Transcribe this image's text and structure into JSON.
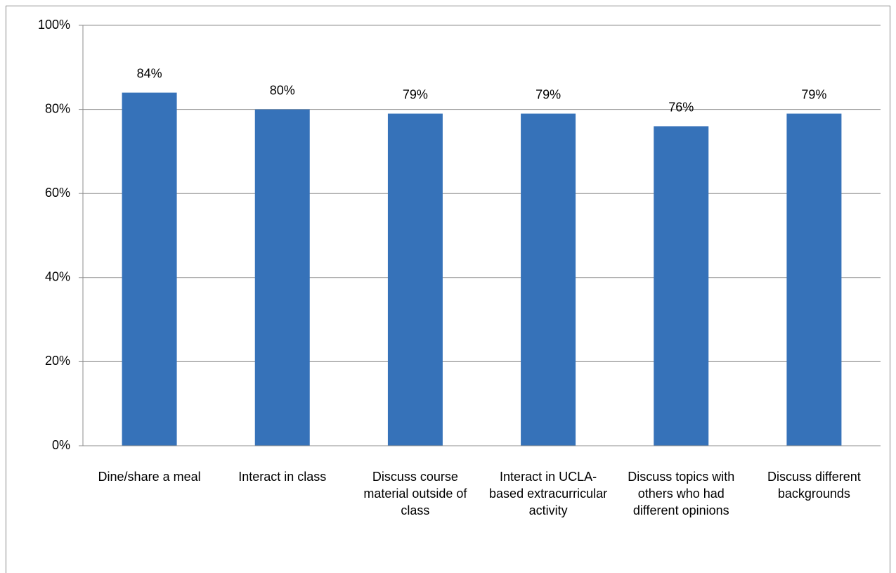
{
  "chart_data": {
    "type": "bar",
    "categories": [
      "Dine/share a meal",
      "Interact in class",
      "Discuss course material outside of class",
      "Interact in UCLA-based extracurricular activity",
      "Discuss topics with others who had different opinions",
      "Discuss different backgrounds"
    ],
    "values": [
      84,
      80,
      79,
      79,
      76,
      79
    ],
    "value_labels": [
      "84%",
      "80%",
      "79%",
      "79%",
      "76%",
      "79%"
    ],
    "color": "#3672b9",
    "ylim": [
      0,
      100
    ],
    "yticks": [
      {
        "value": 0,
        "label": "0%"
      },
      {
        "value": 20,
        "label": "20%"
      },
      {
        "value": 40,
        "label": "40%"
      },
      {
        "value": 60,
        "label": "60%"
      },
      {
        "value": 80,
        "label": "80%"
      },
      {
        "value": 100,
        "label": "100%"
      }
    ],
    "grid": true
  }
}
